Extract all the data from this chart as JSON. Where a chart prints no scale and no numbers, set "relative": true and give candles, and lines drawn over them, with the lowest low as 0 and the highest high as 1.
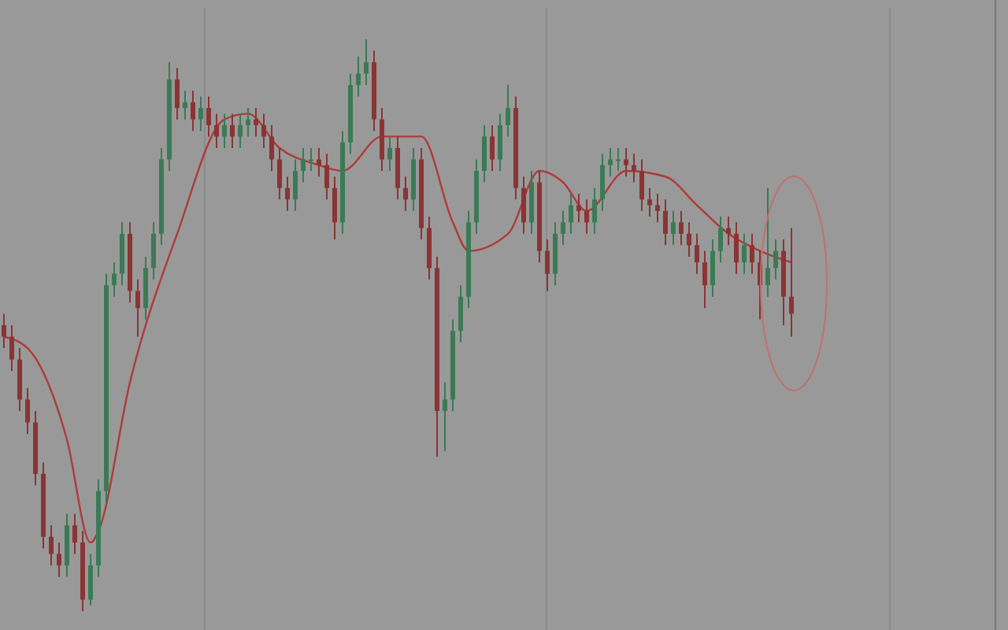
{
  "chart_data": {
    "type": "candlestick",
    "relative": true,
    "categories": [
      null,
      null,
      null,
      null,
      null,
      null,
      null,
      null,
      null,
      null,
      null,
      null,
      null,
      null,
      null,
      null,
      null,
      null,
      null,
      null,
      null,
      null,
      null,
      null,
      null,
      null,
      null,
      null,
      null,
      null,
      null,
      null,
      null,
      null,
      null,
      null,
      null,
      null,
      null,
      null,
      null,
      null,
      null,
      null,
      null,
      null,
      null,
      null,
      null,
      null,
      null,
      null,
      null,
      null,
      null,
      null,
      null,
      null,
      null,
      null,
      null,
      null,
      null,
      null,
      null,
      null,
      null,
      null,
      null,
      null,
      null,
      null,
      null,
      null,
      null,
      null,
      null,
      null,
      null,
      null,
      null,
      null,
      null,
      null,
      null,
      null,
      null,
      null,
      null,
      null,
      null,
      null,
      null,
      null,
      null,
      null,
      null,
      null,
      null,
      null,
      null
    ],
    "ohlc": [
      [
        0.5,
        0.52,
        0.46,
        0.48
      ],
      [
        0.48,
        0.5,
        0.42,
        0.44
      ],
      [
        0.44,
        0.46,
        0.35,
        0.37
      ],
      [
        0.37,
        0.39,
        0.31,
        0.33
      ],
      [
        0.33,
        0.35,
        0.22,
        0.24
      ],
      [
        0.24,
        0.26,
        0.11,
        0.13
      ],
      [
        0.13,
        0.15,
        0.08,
        0.1
      ],
      [
        0.1,
        0.12,
        0.06,
        0.08
      ],
      [
        0.08,
        0.17,
        0.06,
        0.15
      ],
      [
        0.15,
        0.17,
        0.1,
        0.12
      ],
      [
        0.12,
        0.14,
        0.0,
        0.02
      ],
      [
        0.02,
        0.1,
        0.01,
        0.08
      ],
      [
        0.08,
        0.23,
        0.06,
        0.21
      ],
      [
        0.21,
        0.59,
        0.19,
        0.57
      ],
      [
        0.57,
        0.61,
        0.55,
        0.59
      ],
      [
        0.59,
        0.68,
        0.57,
        0.66
      ],
      [
        0.66,
        0.68,
        0.54,
        0.56
      ],
      [
        0.56,
        0.58,
        0.48,
        0.53
      ],
      [
        0.53,
        0.62,
        0.51,
        0.6
      ],
      [
        0.6,
        0.68,
        0.58,
        0.66
      ],
      [
        0.66,
        0.81,
        0.64,
        0.79
      ],
      [
        0.79,
        0.96,
        0.77,
        0.93
      ],
      [
        0.93,
        0.95,
        0.86,
        0.88
      ],
      [
        0.88,
        0.91,
        0.86,
        0.89
      ],
      [
        0.89,
        0.91,
        0.84,
        0.86
      ],
      [
        0.86,
        0.9,
        0.84,
        0.88
      ],
      [
        0.88,
        0.9,
        0.83,
        0.85
      ],
      [
        0.85,
        0.87,
        0.81,
        0.83
      ],
      [
        0.83,
        0.87,
        0.81,
        0.85
      ],
      [
        0.85,
        0.87,
        0.81,
        0.83
      ],
      [
        0.83,
        0.87,
        0.81,
        0.85
      ],
      [
        0.85,
        0.88,
        0.83,
        0.86
      ],
      [
        0.86,
        0.88,
        0.83,
        0.85
      ],
      [
        0.85,
        0.87,
        0.81,
        0.83
      ],
      [
        0.83,
        0.85,
        0.77,
        0.79
      ],
      [
        0.79,
        0.81,
        0.72,
        0.74
      ],
      [
        0.74,
        0.76,
        0.7,
        0.72
      ],
      [
        0.72,
        0.79,
        0.7,
        0.77
      ],
      [
        0.77,
        0.81,
        0.75,
        0.79
      ],
      [
        0.79,
        0.81,
        0.77,
        0.79
      ],
      [
        0.79,
        0.81,
        0.76,
        0.78
      ],
      [
        0.78,
        0.8,
        0.72,
        0.74
      ],
      [
        0.74,
        0.76,
        0.65,
        0.68
      ],
      [
        0.68,
        0.84,
        0.66,
        0.82
      ],
      [
        0.82,
        0.94,
        0.8,
        0.92
      ],
      [
        0.92,
        0.97,
        0.9,
        0.94
      ],
      [
        0.94,
        1.0,
        0.92,
        0.96
      ],
      [
        0.96,
        0.98,
        0.84,
        0.86
      ],
      [
        0.86,
        0.88,
        0.77,
        0.79
      ],
      [
        0.79,
        0.83,
        0.77,
        0.81
      ],
      [
        0.81,
        0.83,
        0.72,
        0.74
      ],
      [
        0.74,
        0.76,
        0.7,
        0.72
      ],
      [
        0.72,
        0.81,
        0.7,
        0.79
      ],
      [
        0.79,
        0.81,
        0.65,
        0.67
      ],
      [
        0.67,
        0.69,
        0.58,
        0.6
      ],
      [
        0.6,
        0.62,
        0.27,
        0.35
      ],
      [
        0.35,
        0.4,
        0.28,
        0.37
      ],
      [
        0.37,
        0.51,
        0.35,
        0.49
      ],
      [
        0.49,
        0.57,
        0.47,
        0.55
      ],
      [
        0.55,
        0.7,
        0.53,
        0.68
      ],
      [
        0.68,
        0.79,
        0.66,
        0.77
      ],
      [
        0.77,
        0.85,
        0.75,
        0.83
      ],
      [
        0.83,
        0.85,
        0.77,
        0.79
      ],
      [
        0.79,
        0.87,
        0.77,
        0.85
      ],
      [
        0.85,
        0.92,
        0.83,
        0.88
      ],
      [
        0.88,
        0.9,
        0.72,
        0.74
      ],
      [
        0.74,
        0.76,
        0.66,
        0.68
      ],
      [
        0.68,
        0.77,
        0.66,
        0.75
      ],
      [
        0.75,
        0.77,
        0.61,
        0.63
      ],
      [
        0.63,
        0.65,
        0.56,
        0.59
      ],
      [
        0.59,
        0.68,
        0.57,
        0.66
      ],
      [
        0.66,
        0.7,
        0.64,
        0.68
      ],
      [
        0.68,
        0.73,
        0.66,
        0.71
      ],
      [
        0.71,
        0.73,
        0.68,
        0.7
      ],
      [
        0.7,
        0.72,
        0.66,
        0.68
      ],
      [
        0.68,
        0.74,
        0.66,
        0.72
      ],
      [
        0.72,
        0.8,
        0.7,
        0.78
      ],
      [
        0.78,
        0.81,
        0.76,
        0.79
      ],
      [
        0.79,
        0.81,
        0.77,
        0.79
      ],
      [
        0.79,
        0.81,
        0.76,
        0.78
      ],
      [
        0.78,
        0.8,
        0.75,
        0.77
      ],
      [
        0.77,
        0.79,
        0.7,
        0.72
      ],
      [
        0.72,
        0.74,
        0.69,
        0.71
      ],
      [
        0.71,
        0.73,
        0.68,
        0.7
      ],
      [
        0.7,
        0.72,
        0.64,
        0.66
      ],
      [
        0.66,
        0.7,
        0.64,
        0.68
      ],
      [
        0.68,
        0.7,
        0.64,
        0.66
      ],
      [
        0.66,
        0.68,
        0.62,
        0.64
      ],
      [
        0.64,
        0.66,
        0.59,
        0.61
      ],
      [
        0.61,
        0.63,
        0.53,
        0.57
      ],
      [
        0.57,
        0.65,
        0.55,
        0.63
      ],
      [
        0.63,
        0.69,
        0.61,
        0.67
      ],
      [
        0.67,
        0.69,
        0.64,
        0.66
      ],
      [
        0.66,
        0.68,
        0.59,
        0.61
      ],
      [
        0.61,
        0.66,
        0.59,
        0.64
      ],
      [
        0.64,
        0.66,
        0.59,
        0.61
      ],
      [
        0.61,
        0.63,
        0.51,
        0.57
      ],
      [
        0.57,
        0.74,
        0.55,
        0.6
      ],
      [
        0.6,
        0.65,
        0.58,
        0.63
      ],
      [
        0.63,
        0.65,
        0.5,
        0.55
      ],
      [
        0.55,
        0.67,
        0.48,
        0.52
      ]
    ],
    "series": [
      {
        "type": "line",
        "color": "#b03a3a",
        "values": [
          0.48,
          null,
          null,
          0.46,
          null,
          null,
          null,
          null,
          0.3,
          null,
          null,
          0.12,
          0.14,
          null,
          null,
          null,
          0.4,
          null,
          null,
          null,
          null,
          null,
          0.66,
          null,
          null,
          null,
          null,
          null,
          0.86,
          null,
          null,
          0.87,
          null,
          null,
          null,
          0.81,
          null,
          null,
          null,
          null,
          0.78,
          null,
          null,
          0.77,
          null,
          null,
          null,
          null,
          0.83,
          null,
          null,
          null,
          null,
          0.83,
          null,
          null,
          null,
          0.68,
          null,
          0.63,
          null,
          null,
          null,
          null,
          0.66,
          null,
          null,
          null,
          0.77,
          null,
          null,
          0.75,
          null,
          null,
          0.7,
          null,
          null,
          null,
          null,
          0.77,
          null,
          null,
          null,
          null,
          0.76,
          null,
          null,
          null,
          0.71,
          null,
          null,
          null,
          0.66,
          null,
          null,
          null,
          0.63,
          null,
          null,
          null,
          0.61
        ]
      }
    ]
  }
}
